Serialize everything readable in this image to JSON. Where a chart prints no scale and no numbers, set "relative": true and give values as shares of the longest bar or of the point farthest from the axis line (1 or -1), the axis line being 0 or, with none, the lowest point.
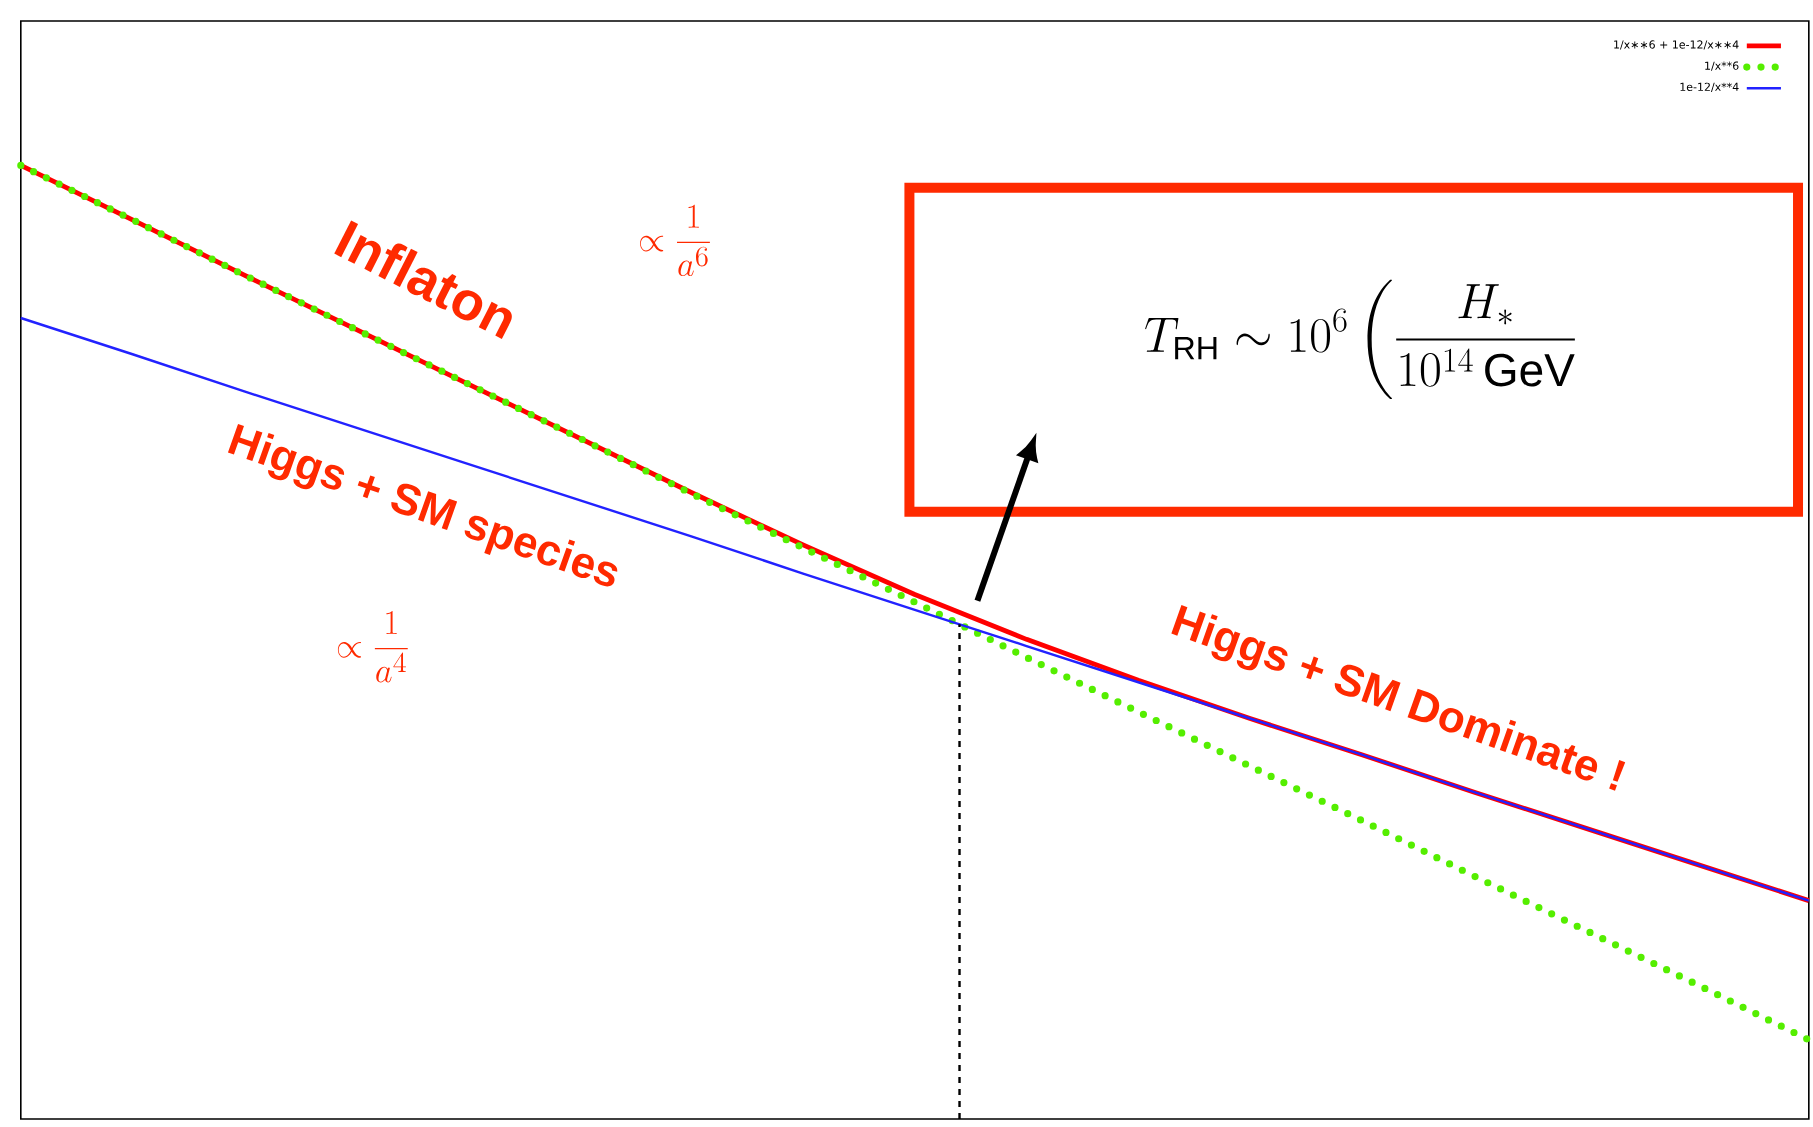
{
  "chart_data": {
    "type": "line",
    "relative": true,
    "categories": [
      null,
      null,
      null,
      null,
      null,
      null,
      null,
      null,
      null,
      null,
      null,
      null,
      null,
      null,
      null,
      null,
      null
    ],
    "series": [
      {
        "name": "1/x∗∗6 + 1e-12/x∗∗4",
        "color": "#ff0000",
        "values": [
          1,
          0.943,
          0.885,
          0.828,
          0.771,
          0.714,
          0.657,
          0.602,
          0.55,
          0.503,
          0.46,
          0.42,
          0.382,
          0.343,
          0.305,
          0.267,
          0.229
        ]
      },
      {
        "name": "1/x**6",
        "line_style": "dotted",
        "color": "#55ee00",
        "values": [
          1,
          0.943,
          0.885,
          0.828,
          0.771,
          0.714,
          0.656,
          0.599,
          0.542,
          0.484,
          0.427,
          0.37,
          0.313,
          0.255,
          0.198,
          0.141,
          0.083
        ]
      },
      {
        "name": "1e-12/x**4",
        "color": "#2222ff",
        "values": [
          0.84,
          0.802,
          0.763,
          0.725,
          0.687,
          0.649,
          0.611,
          0.572,
          0.534,
          0.496,
          0.458,
          0.42,
          0.382,
          0.343,
          0.305,
          0.267,
          0.229
        ]
      }
    ],
    "line_style": "solid",
    "legend": "top right",
    "annotations": [
      "Inflaton",
      "\\propto \\frac{1}{a^{6}}",
      "Higgs + SM species",
      "\\propto \\frac{1}{a^{4}}",
      "Higgs + SM Dominate !",
      "T_{\\mathrm{RH}} \\sim 10^{6} \\left( \\frac{H_{*}}{10^{14}\\,\\mathrm{GeV}} \\right."
    ]
  }
}
